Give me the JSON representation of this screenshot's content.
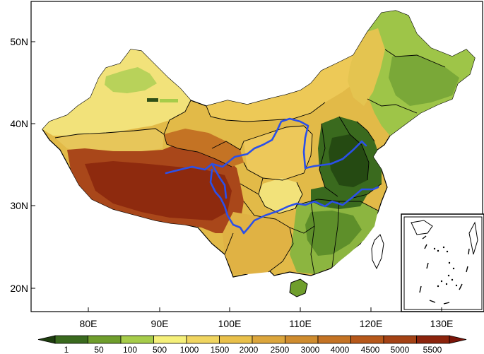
{
  "map": {
    "lat_ticks": [
      "50N",
      "40N",
      "30N",
      "20N"
    ],
    "lon_ticks": [
      "80E",
      "90E",
      "100E",
      "110E",
      "120E",
      "130E"
    ],
    "lon_range": [
      73,
      135
    ],
    "lat_range": [
      17,
      55
    ]
  },
  "legend": {
    "breaks": [
      "1",
      "50",
      "100",
      "500",
      "1000",
      "1500",
      "2000",
      "2500",
      "3000",
      "4000",
      "4500",
      "5000",
      "5500"
    ],
    "colors": [
      "#1e3d0f",
      "#3a6a1e",
      "#6f9e2c",
      "#a6cc4a",
      "#f5f07a",
      "#f0d560",
      "#e9c04a",
      "#dca63c",
      "#cf8c2e",
      "#c47324",
      "#b6581a",
      "#a44214",
      "#8c240c",
      "#7a1408"
    ]
  },
  "colors": {
    "border": "#000000",
    "rivers": "#2b50e8",
    "background": "#ffffff"
  }
}
